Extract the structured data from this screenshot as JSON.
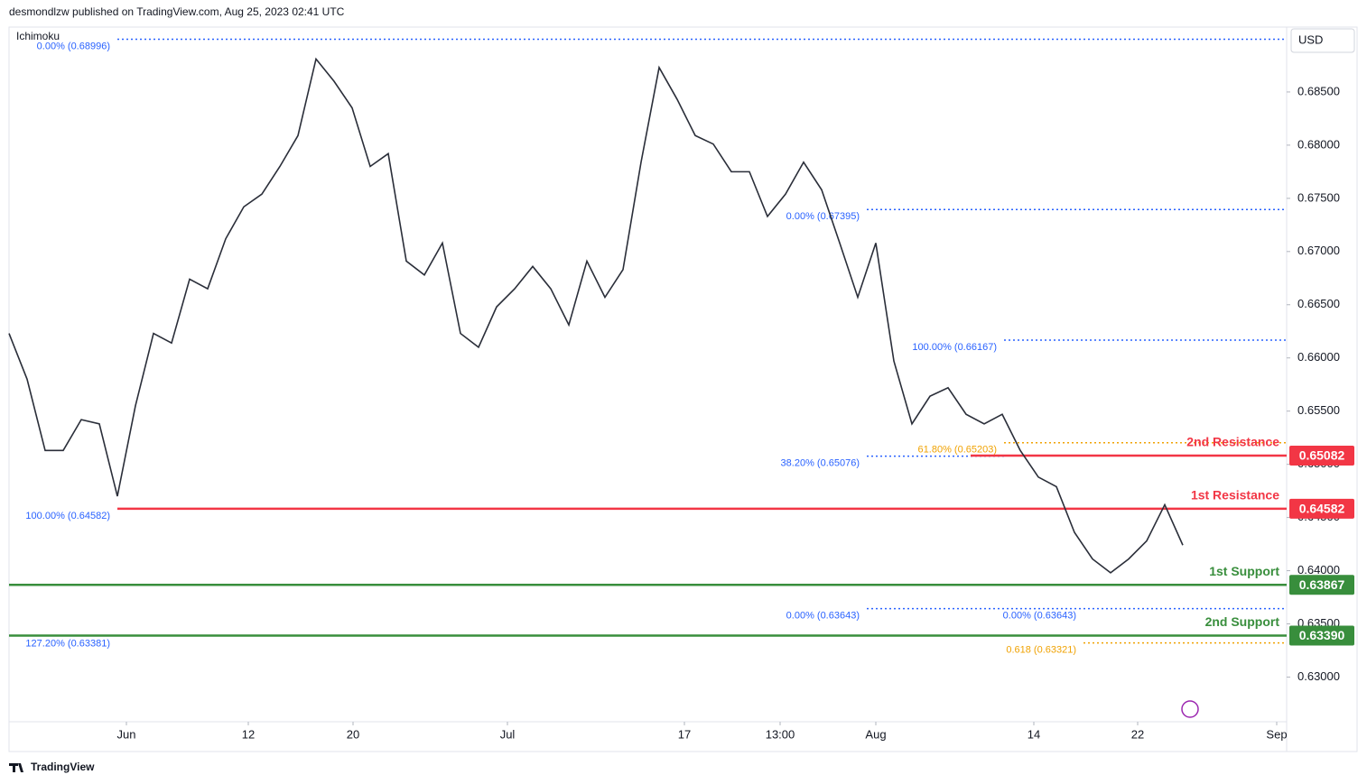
{
  "header": "desmondlzw published on TradingView.com, Aug 25, 2023 02:41 UTC",
  "indicator": "Ichimoku",
  "currency": "USD",
  "footer": "TradingView",
  "chart_data": {
    "type": "line",
    "x": [
      0,
      1,
      2,
      3,
      4,
      5,
      6,
      7,
      8,
      9,
      10,
      11,
      12,
      13,
      14,
      15,
      16,
      17,
      18,
      19,
      20,
      21,
      22,
      23,
      24,
      25,
      26,
      27,
      28,
      29,
      30,
      31,
      32,
      33,
      34,
      35,
      36,
      37,
      38,
      39,
      40,
      41,
      42,
      43,
      44,
      45,
      46,
      47,
      48,
      49,
      50,
      51,
      52,
      53,
      54,
      55,
      56,
      57,
      58,
      59,
      60,
      61,
      62,
      63,
      64,
      65
    ],
    "series": [
      {
        "color": "#2a2e39",
        "values": [
          0.6623,
          0.658,
          0.6513,
          0.6513,
          0.6542,
          0.6538,
          0.647,
          0.6555,
          0.6623,
          0.6614,
          0.6674,
          0.6665,
          0.6712,
          0.6742,
          0.6754,
          0.678,
          0.6809,
          0.6881,
          0.686,
          0.6835,
          0.678,
          0.6792,
          0.6691,
          0.6678,
          0.6708,
          0.6623,
          0.661,
          0.6648,
          0.6665,
          0.6686,
          0.6665,
          0.6631,
          0.6691,
          0.6657,
          0.6683,
          0.6784,
          0.6873,
          0.6843,
          0.6809,
          0.6801,
          0.6775,
          0.6775,
          0.6733,
          0.6754,
          0.6784,
          0.6758,
          0.6708,
          0.6657,
          0.6708,
          0.6597,
          0.6538,
          0.6564,
          0.6572,
          0.6547,
          0.6538,
          0.6547,
          0.6513,
          0.6488,
          0.6479,
          0.6436,
          0.6411,
          0.6398,
          0.6411,
          0.6428,
          0.6462,
          0.6424
        ]
      }
    ],
    "xlim": [
      0,
      70.75
    ],
    "xticks": [
      {
        "value": 6.5,
        "label": "Jun"
      },
      {
        "value": 13.25,
        "label": "12"
      },
      {
        "value": 19.05,
        "label": "20"
      },
      {
        "value": 27.6,
        "label": "Jul"
      },
      {
        "value": 37.4,
        "label": "17"
      },
      {
        "value": 42.7,
        "label": "13:00"
      },
      {
        "value": 48,
        "label": "Aug"
      },
      {
        "value": 56.75,
        "label": "14"
      },
      {
        "value": 62.5,
        "label": "22"
      },
      {
        "value": 70.2,
        "label": "Sep"
      }
    ],
    "ylim": [
      0.6258,
      0.6911
    ],
    "yticks": [
      {
        "value": 0.63,
        "label": "0.63000"
      },
      {
        "value": 0.635,
        "label": "0.63500"
      },
      {
        "value": 0.64,
        "label": "0.64000"
      },
      {
        "value": 0.645,
        "label": "0.64500"
      },
      {
        "value": 0.65,
        "label": "0.65000"
      },
      {
        "value": 0.655,
        "label": "0.65500"
      },
      {
        "value": 0.66,
        "label": "0.66000"
      },
      {
        "value": 0.665,
        "label": "0.66500"
      },
      {
        "value": 0.67,
        "label": "0.67000"
      },
      {
        "value": 0.675,
        "label": "0.67500"
      },
      {
        "value": 0.68,
        "label": "0.68000"
      },
      {
        "value": 0.685,
        "label": "0.68500"
      }
    ],
    "levels": [
      {
        "name": "2nd Resistance",
        "value": 0.65082,
        "label": "0.65082",
        "color": "#f23645",
        "from": 53.25
      },
      {
        "name": "1st Resistance",
        "value": 0.64582,
        "label": "0.64582",
        "color": "#f23645",
        "from": 6
      },
      {
        "name": "1st Support",
        "value": 0.63867,
        "label": "0.63867",
        "color": "#388e3c",
        "from": 0
      },
      {
        "name": "2nd Support",
        "value": 0.6339,
        "label": "0.63390",
        "color": "#388e3c",
        "from": 0
      }
    ],
    "fibs": [
      {
        "value": 0.68996,
        "label": "0.00% (0.68996)",
        "color": "#2962ff",
        "from": 6,
        "to": 70.75
      },
      {
        "value": 0.64582,
        "label": "100.00% (0.64582)",
        "color": "#2962ff",
        "from": 6,
        "to": 6
      },
      {
        "value": 0.67395,
        "label": "0.00% (0.67395)",
        "color": "#2962ff",
        "from": 47.5,
        "to": 70.75
      },
      {
        "value": 0.66167,
        "label": "100.00% (0.66167)",
        "color": "#2962ff",
        "from": 55.1,
        "to": 70.75
      },
      {
        "value": 0.65076,
        "label": "38.20% (0.65076)",
        "color": "#2962ff",
        "from": 47.5,
        "to": 55.1
      },
      {
        "value": 0.65203,
        "label": "61.80% (0.65203)",
        "color": "#f0a202",
        "from": 55.1,
        "to": 70.75
      },
      {
        "value": 0.63643,
        "label": "0.00% (0.63643)",
        "color": "#2962ff",
        "from": 47.5,
        "to": 59.5
      },
      {
        "value": 0.63643,
        "label": "0.00% (0.63643)",
        "color": "#2962ff",
        "from": 59.5,
        "to": 70.75
      },
      {
        "value": 0.63381,
        "label": "127.20% (0.63381)",
        "color": "#2962ff",
        "from": 6,
        "to": 6
      },
      {
        "value": 0.63321,
        "label": "0.618 (0.63321)",
        "color": "#f0a202",
        "from": 59.5,
        "to": 70.75
      }
    ]
  }
}
